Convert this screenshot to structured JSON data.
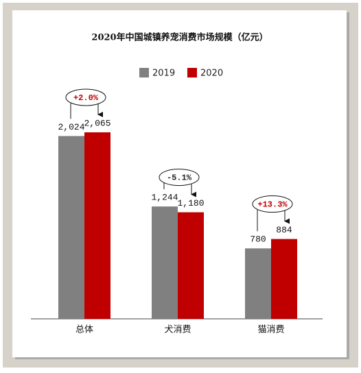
{
  "chart_data": {
    "type": "bar",
    "title": "2020年中国城镇养宠消费市场规模（亿元）",
    "categories": [
      "总体",
      "犬消费",
      "猫消费"
    ],
    "series": [
      {
        "name": "2019",
        "color": "#808080",
        "values": [
          2024,
          1244,
          780
        ],
        "value_labels": [
          "2,024",
          "1,244",
          "780"
        ]
      },
      {
        "name": "2020",
        "color": "#c00000",
        "values": [
          2065,
          1180,
          884
        ],
        "value_labels": [
          "2,065",
          "1,180",
          "884"
        ]
      }
    ],
    "annotations": [
      "+2.0%",
      "-5.1%",
      "+13.3%"
    ],
    "annotation_colors": [
      "#c00000",
      "#222222",
      "#c00000"
    ],
    "legend": "top"
  }
}
